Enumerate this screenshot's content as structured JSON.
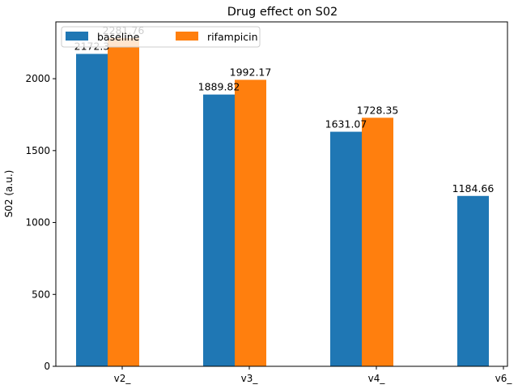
{
  "chart_data": {
    "type": "bar",
    "title": "Drug effect on S02",
    "xlabel": "",
    "ylabel": "S02 (a.u.)",
    "categories": [
      "v2_",
      "v3_",
      "v4_",
      "v6_"
    ],
    "series": [
      {
        "name": "baseline",
        "color": "#1f77b4",
        "values": [
          2172.3,
          1889.82,
          1631.07,
          1184.66
        ]
      },
      {
        "name": "rifampicin",
        "color": "#ff7f0e",
        "values": [
          2281.76,
          1992.17,
          1728.35,
          null
        ]
      }
    ],
    "data_labels": [
      [
        "2172.3",
        "1889.82",
        "1631.07",
        "1184.66"
      ],
      [
        "2281.76",
        "1992.17",
        "1728.35",
        null
      ]
    ],
    "ylim": [
      0,
      2395
    ],
    "yticks": [
      0,
      500,
      1000,
      1500,
      2000
    ],
    "legend": {
      "placement": "top-left",
      "columns": 2
    },
    "grid": false
  }
}
